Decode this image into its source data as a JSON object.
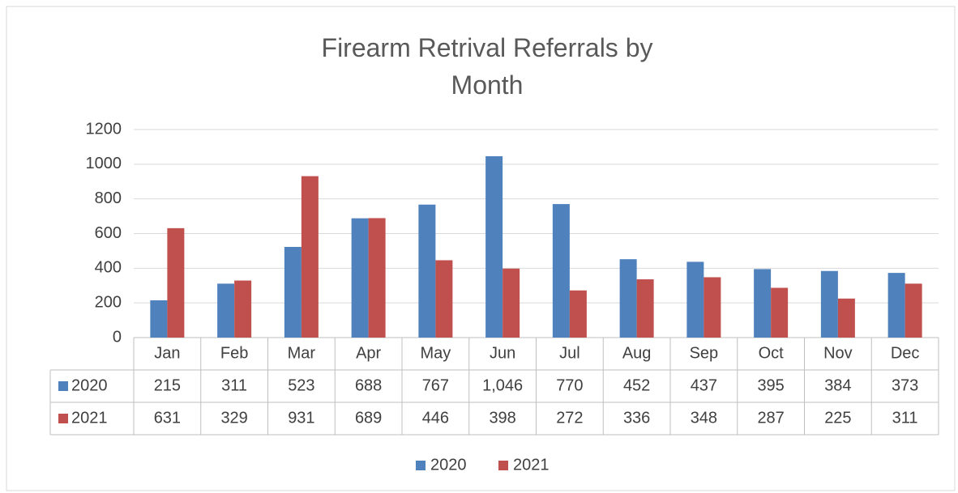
{
  "chart_data": {
    "type": "bar",
    "title": "Firearm Retrival Referrals by Month",
    "categories": [
      "Jan",
      "Feb",
      "Mar",
      "Apr",
      "May",
      "Jun",
      "Jul",
      "Aug",
      "Sep",
      "Oct",
      "Nov",
      "Dec"
    ],
    "series": [
      {
        "name": "2020",
        "color": "#4f81bd",
        "values": [
          215,
          311,
          523,
          688,
          767,
          1046,
          770,
          452,
          437,
          395,
          384,
          373
        ],
        "value_labels": [
          "215",
          "311",
          "523",
          "688",
          "767",
          "1,046",
          "770",
          "452",
          "437",
          "395",
          "384",
          "373"
        ]
      },
      {
        "name": "2021",
        "color": "#c0504d",
        "values": [
          631,
          329,
          931,
          689,
          446,
          398,
          272,
          336,
          348,
          287,
          225,
          311
        ],
        "value_labels": [
          "631",
          "329",
          "931",
          "689",
          "446",
          "398",
          "272",
          "336",
          "348",
          "287",
          "225",
          "311"
        ]
      }
    ],
    "ylim": [
      0,
      1200
    ],
    "yticks": [
      0,
      200,
      400,
      600,
      800,
      1000,
      1200
    ],
    "grid": true,
    "legend": "bottom"
  }
}
